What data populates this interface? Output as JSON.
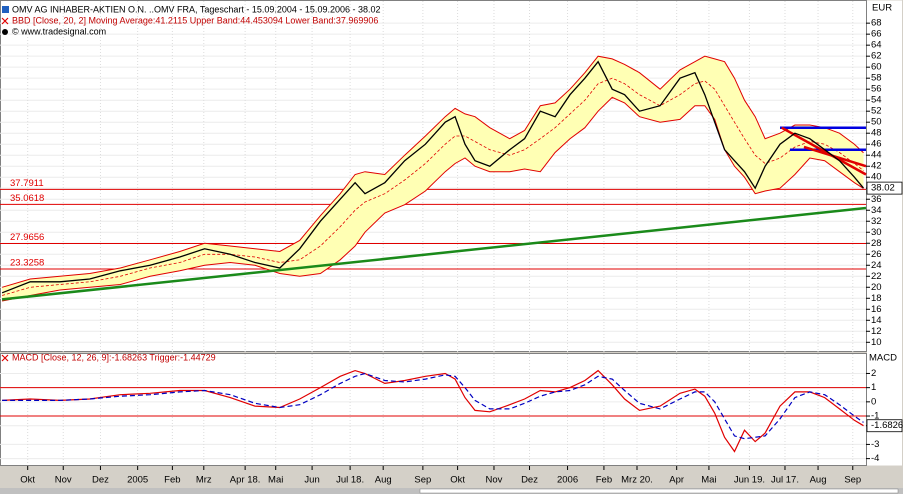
{
  "chart_data": [
    {
      "type": "line",
      "title": "OMV AG INHABER-AKTIEN O.N. ..OMV FRA, Tageschart - 15.09.2004 - 15.09.2006 - 38.02",
      "subtitle": "BBD [Close, 20, 2] Moving Average:41.2115 Upper Band:44.453094 Lower Band:37.969906",
      "source": "© www.tradesignal.com",
      "y_axis_label": "EUR",
      "grid": true,
      "x": [
        0,
        3.4,
        7,
        10.6,
        14.3,
        17.9,
        21.5,
        24.5,
        27.6,
        30.6,
        33.6,
        36,
        38.5,
        40.9,
        42.7,
        43.9,
        46.3,
        48.7,
        51.2,
        53.6,
        54.8,
        56,
        57.2,
        59,
        61.4,
        63.2,
        65.1,
        66.9,
        68.7,
        70.5,
        72.1,
        73.8,
        75.3,
        77.1,
        79.6,
        82,
        83.8,
        85,
        86.2,
        87.4,
        88.6,
        89.8,
        91.1,
        92.3,
        94.1,
        95.9,
        97.7,
        99.5,
        101.3,
        103.1,
        104.2
      ],
      "xlim": [
        -0.25,
        104.5
      ],
      "ylim": [
        8.6,
        71.3
      ],
      "yticks": [
        10,
        12,
        14,
        16,
        18,
        20,
        22,
        24,
        26,
        28,
        30,
        32,
        34,
        36,
        {
          "value": 38.02,
          "label": "38.02"
        },
        40,
        42,
        44,
        46,
        48,
        50,
        52,
        54,
        56,
        58,
        60,
        62,
        64,
        66,
        68
      ],
      "series": [
        {
          "color": "#000000",
          "values": [
            19,
            21,
            21,
            21.5,
            23,
            24,
            25.5,
            27,
            26,
            24.5,
            23.5,
            27,
            32,
            36,
            39,
            37,
            39,
            43,
            46,
            50,
            51,
            46,
            43,
            42,
            45,
            47,
            52,
            51,
            55,
            58,
            61,
            56,
            55,
            52,
            53,
            58,
            59,
            55,
            50,
            45,
            43,
            41,
            38,
            42,
            46,
            48,
            47,
            45,
            43,
            40,
            38.02
          ]
        }
      ],
      "bollinger": {
        "fill": "#ffffb4",
        "line_color": "#e00000",
        "middle": [
          18.5,
          20,
          20.5,
          21,
          22,
          23.5,
          24.5,
          26,
          26,
          25.5,
          24.5,
          25,
          27.5,
          31,
          34,
          35.5,
          37,
          39.5,
          42.5,
          46,
          47.5,
          47.5,
          46.5,
          45,
          44,
          45,
          47,
          49,
          51.5,
          54,
          57,
          58,
          57,
          55,
          53,
          55,
          57,
          57.5,
          56,
          53,
          50,
          47,
          44,
          42.5,
          43.5,
          45.5,
          46.5,
          46,
          44.5,
          42.5,
          41.2115
        ],
        "upper": [
          20,
          21.5,
          22,
          22.5,
          23.5,
          25,
          26.5,
          28,
          27.5,
          27,
          26.5,
          28.5,
          33,
          37,
          40.5,
          41,
          40.5,
          44,
          47.5,
          51,
          52.5,
          51.5,
          51,
          49,
          47,
          48.5,
          53,
          53.5,
          56,
          59,
          62,
          61.5,
          60.5,
          59,
          56,
          59.5,
          61,
          62,
          61.5,
          61,
          58,
          54,
          51,
          47,
          48,
          49.5,
          49.5,
          49,
          48,
          46,
          44.453094
        ],
        "lower": [
          17.5,
          18.5,
          19.5,
          20,
          20.5,
          22,
          23,
          24,
          24.5,
          24,
          22.5,
          22,
          22.5,
          25,
          27.5,
          30,
          33.5,
          35,
          37.5,
          41,
          42.5,
          43.5,
          42,
          41,
          41,
          41.5,
          41,
          44.5,
          47,
          49,
          52,
          54.5,
          53.5,
          51,
          50,
          50.5,
          53,
          53,
          50.5,
          45,
          42,
          40,
          37,
          37.5,
          38,
          40.5,
          43.5,
          43,
          41,
          39,
          37.969906
        ]
      },
      "levels": [
        37.7911,
        35.0618,
        27.9656,
        23.3258
      ],
      "level_color": "#e00000",
      "trendlines": [
        {
          "color": "#1a8a1a",
          "x": [
            0,
            104.5
          ],
          "y": [
            17.8,
            34.4
          ]
        },
        {
          "color": "#0000e0",
          "x": [
            94.1,
            104.5
          ],
          "y": [
            49,
            49
          ]
        },
        {
          "color": "#0000e0",
          "x": [
            95.3,
            104.5
          ],
          "y": [
            45,
            45
          ]
        },
        {
          "color": "#e00000",
          "x": [
            94.3,
            104.5
          ],
          "y": [
            49,
            40.5
          ]
        },
        {
          "color": "#e00000",
          "x": [
            97,
            104.5
          ],
          "y": [
            45.5,
            42
          ]
        }
      ]
    },
    {
      "type": "line",
      "title": "MACD [Close, 12, 26, 9]:-1.68263 Trigger:-1.44729",
      "y_axis_label": "MACD",
      "grid": true,
      "x": [
        0,
        3.4,
        7,
        10.6,
        14.3,
        17.9,
        21.5,
        24.5,
        27.6,
        30.6,
        33.6,
        36,
        38.5,
        40.9,
        42.7,
        43.9,
        46.3,
        48.7,
        51.2,
        53.6,
        54.8,
        56,
        57.2,
        59,
        61.4,
        63.2,
        65.1,
        66.9,
        68.7,
        70.5,
        72.1,
        73.8,
        75.3,
        77.1,
        79.6,
        82,
        83.8,
        85,
        86.2,
        87.4,
        88.6,
        89.8,
        91.1,
        92.3,
        94.1,
        95.9,
        97.7,
        99.5,
        101.3,
        103.1,
        104.2
      ],
      "xlim": [
        -0.25,
        104.5
      ],
      "xticks": [
        {
          "value": 3.1,
          "label": "Okt"
        },
        {
          "value": 7.4,
          "label": "Nov"
        },
        {
          "value": 11.9,
          "label": "Dez"
        },
        {
          "value": 16.4,
          "label": "2005"
        },
        {
          "value": 20.6,
          "label": "Feb"
        },
        {
          "value": 24.4,
          "label": "Mrz"
        },
        {
          "value": 29.4,
          "label": "Apr 18."
        },
        {
          "value": 33.1,
          "label": "Mai"
        },
        {
          "value": 37.5,
          "label": "Jun"
        },
        {
          "value": 42.1,
          "label": "Jul 18."
        },
        {
          "value": 46.1,
          "label": "Aug"
        },
        {
          "value": 50.9,
          "label": "Sep"
        },
        {
          "value": 55.1,
          "label": "Okt"
        },
        {
          "value": 59.5,
          "label": "Nov"
        },
        {
          "value": 63.8,
          "label": "Dez"
        },
        {
          "value": 68.4,
          "label": "2006"
        },
        {
          "value": 72.8,
          "label": "Feb"
        },
        {
          "value": 76.8,
          "label": "Mrz 20."
        },
        {
          "value": 81.6,
          "label": "Apr"
        },
        {
          "value": 85.5,
          "label": "Mai"
        },
        {
          "value": 90.4,
          "label": "Jun 19."
        },
        {
          "value": 94.7,
          "label": "Jul 17."
        },
        {
          "value": 98.7,
          "label": "Aug"
        },
        {
          "value": 102.9,
          "label": "Sep"
        }
      ],
      "ylim": [
        -4.45,
        3.3
      ],
      "yticks": [
        -4,
        -3,
        {
          "value": -1.68263,
          "label": "-1.6826"
        },
        -1,
        0,
        1,
        2
      ],
      "levels": [
        1,
        -1
      ],
      "level_color": "#e00000",
      "series": [
        {
          "color": "#e00000",
          "values": [
            0.1,
            0.2,
            0.1,
            0.2,
            0.5,
            0.6,
            0.8,
            0.8,
            0.3,
            -0.3,
            -0.4,
            0.2,
            1.0,
            1.8,
            2.2,
            2.0,
            1.3,
            1.5,
            1.8,
            2.0,
            1.6,
            0.3,
            -0.6,
            -0.7,
            -0.2,
            0.2,
            0.8,
            0.7,
            1.0,
            1.5,
            2.2,
            1.2,
            0.2,
            -0.6,
            -0.3,
            0.6,
            0.9,
            0.4,
            -0.8,
            -2.5,
            -3.5,
            -2.0,
            -2.8,
            -2.2,
            -0.3,
            0.7,
            0.7,
            0.3,
            -0.5,
            -1.3,
            -1.68263
          ]
        },
        {
          "color": "#0000c0",
          "dashed": true,
          "values": [
            0.1,
            0.1,
            0.1,
            0.2,
            0.4,
            0.5,
            0.7,
            0.8,
            0.5,
            -0.1,
            -0.4,
            -0.2,
            0.5,
            1.3,
            1.8,
            2.0,
            1.5,
            1.4,
            1.6,
            1.9,
            1.8,
            1.0,
            0.1,
            -0.5,
            -0.5,
            -0.1,
            0.4,
            0.7,
            0.8,
            1.2,
            1.8,
            1.6,
            0.8,
            -0.1,
            -0.5,
            0.2,
            0.7,
            0.7,
            0.0,
            -1.2,
            -2.4,
            -2.6,
            -2.5,
            -2.4,
            -1.2,
            0.3,
            0.7,
            0.5,
            -0.2,
            -1.0,
            -1.44729
          ]
        }
      ]
    }
  ]
}
